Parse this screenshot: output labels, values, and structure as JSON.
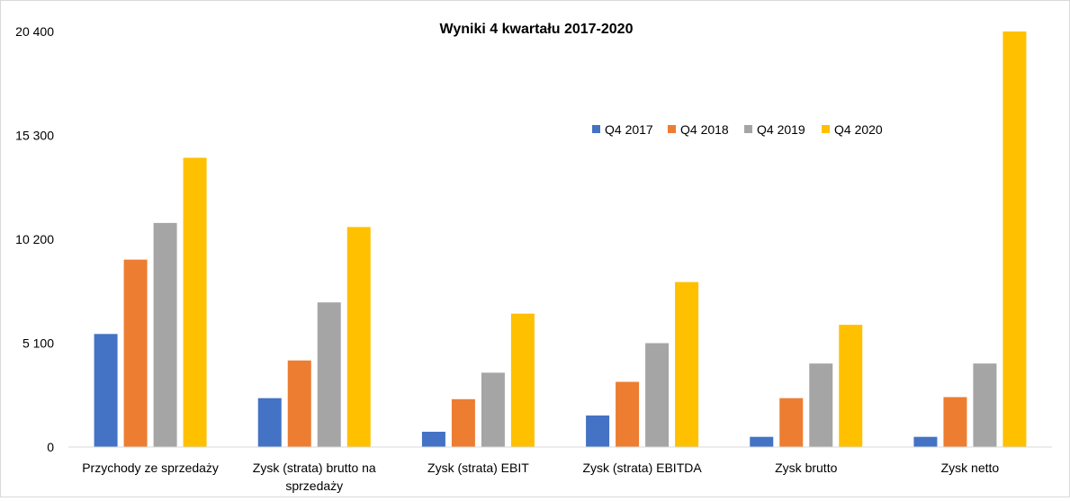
{
  "chart_data": {
    "type": "bar",
    "title": "Wyniki 4 kwartału 2017-2020",
    "xlabel": "",
    "ylabel": "",
    "ylim": [
      0,
      20400
    ],
    "yticks": [
      0,
      5100,
      10200,
      15300,
      20400
    ],
    "ytick_labels": [
      "0",
      "5 100",
      "10 200",
      "15 300",
      "20 400"
    ],
    "grid": false,
    "legend_position": "top-right",
    "categories": [
      [
        "Przychody ze sprzedaży"
      ],
      [
        "Zysk (strata) brutto na",
        "sprzedaży"
      ],
      [
        "Zysk (strata) EBIT"
      ],
      [
        "Zysk (strata) EBITDA"
      ],
      [
        "Zysk brutto"
      ],
      [
        "Zysk netto"
      ]
    ],
    "series": [
      {
        "name": "Q4 2017",
        "color": "#4472C4",
        "values": [
          5550,
          2400,
          750,
          1550,
          500,
          500
        ]
      },
      {
        "name": "Q4 2018",
        "color": "#ED7D31",
        "values": [
          9200,
          4250,
          2350,
          3200,
          2400,
          2450
        ]
      },
      {
        "name": "Q4 2019",
        "color": "#A5A5A5",
        "values": [
          11000,
          7100,
          3650,
          5100,
          4100,
          4100
        ]
      },
      {
        "name": "Q4 2020",
        "color": "#FFC000",
        "values": [
          14200,
          10800,
          6550,
          8100,
          6000,
          20400
        ]
      }
    ]
  }
}
